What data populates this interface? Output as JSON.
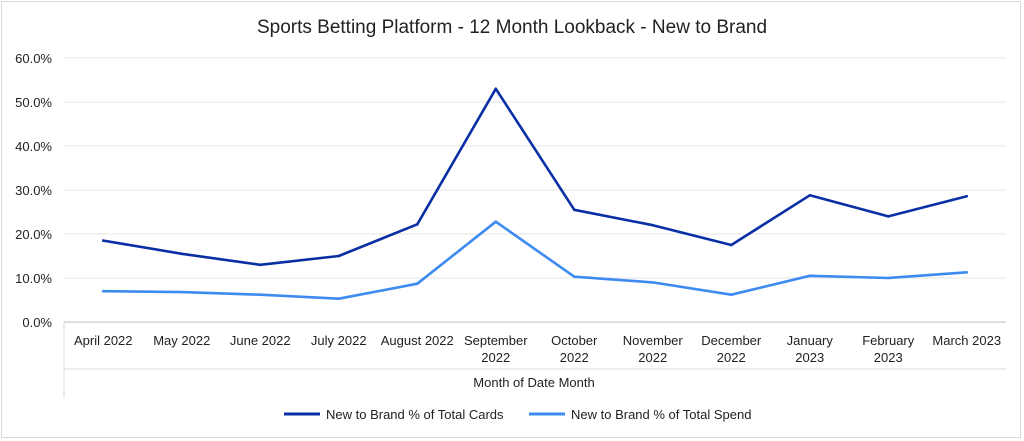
{
  "chart_data": {
    "type": "line",
    "title": "Sports Betting Platform - 12 Month Lookback - New to Brand",
    "xlabel": "Month of Date Month",
    "ylabel": "",
    "ylim": [
      0,
      60
    ],
    "yticks": [
      "0.0%",
      "10.0%",
      "20.0%",
      "30.0%",
      "40.0%",
      "50.0%",
      "60.0%"
    ],
    "grid": true,
    "legend": "bottom",
    "categories": [
      [
        "April 2022"
      ],
      [
        "May 2022"
      ],
      [
        "June 2022"
      ],
      [
        "July 2022"
      ],
      [
        "August 2022"
      ],
      [
        "September",
        "2022"
      ],
      [
        "October",
        "2022"
      ],
      [
        "November",
        "2022"
      ],
      [
        "December",
        "2022"
      ],
      [
        "January",
        "2023"
      ],
      [
        "February",
        "2023"
      ],
      [
        "March 2023"
      ]
    ],
    "series": [
      {
        "name": "New to Brand % of Total Cards",
        "color": "#0a2fa5",
        "values": [
          18.5,
          15.5,
          13.0,
          15.0,
          22.2,
          53.0,
          25.5,
          22.0,
          17.5,
          28.8,
          24.0,
          28.6
        ]
      },
      {
        "name": "New to Brand % of Total Spend",
        "color": "#3d8bf0",
        "values": [
          7.0,
          6.8,
          6.2,
          5.3,
          8.7,
          22.8,
          10.3,
          9.0,
          6.2,
          10.5,
          10.0,
          11.3
        ]
      }
    ]
  }
}
